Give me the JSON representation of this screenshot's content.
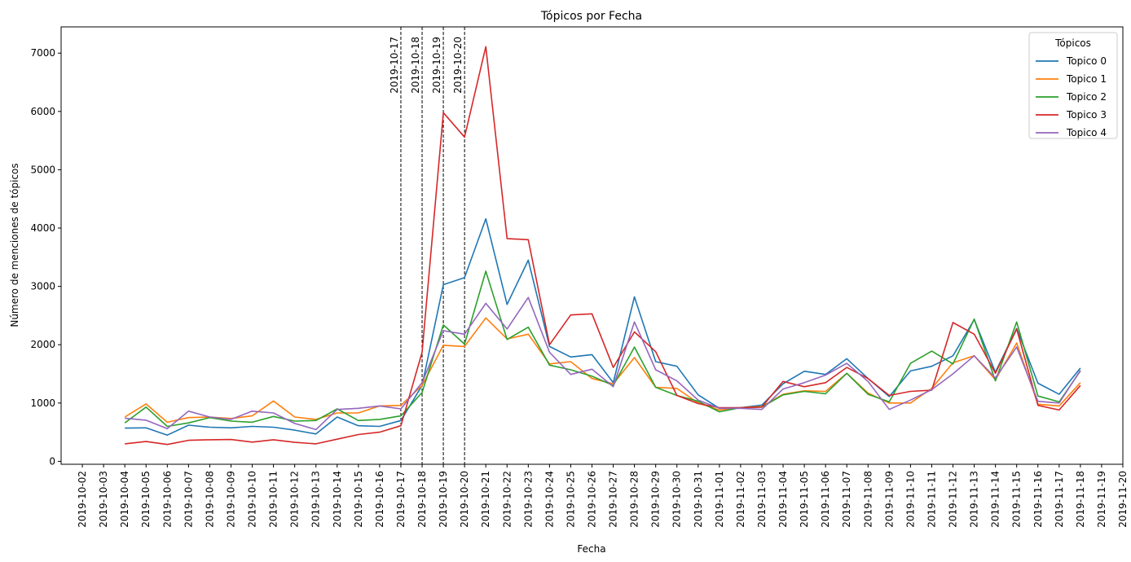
{
  "chart_data": {
    "type": "line",
    "title": "Tópicos por Fecha",
    "xlabel": "Fecha",
    "ylabel": "Número de menciones de tópicos",
    "ylim": [
      -50,
      7450
    ],
    "yticks": [
      0,
      1000,
      2000,
      3000,
      4000,
      5000,
      6000,
      7000
    ],
    "x_ticks": [
      "2019-10-02",
      "2019-10-03",
      "2019-10-04",
      "2019-10-05",
      "2019-10-06",
      "2019-10-07",
      "2019-10-08",
      "2019-10-09",
      "2019-10-10",
      "2019-10-11",
      "2019-10-12",
      "2019-10-13",
      "2019-10-14",
      "2019-10-15",
      "2019-10-16",
      "2019-10-17",
      "2019-10-18",
      "2019-10-19",
      "2019-10-20",
      "2019-10-21",
      "2019-10-22",
      "2019-10-23",
      "2019-10-24",
      "2019-10-25",
      "2019-10-26",
      "2019-10-27",
      "2019-10-28",
      "2019-10-29",
      "2019-10-30",
      "2019-10-31",
      "2019-11-01",
      "2019-11-02",
      "2019-11-03",
      "2019-11-04",
      "2019-11-05",
      "2019-11-06",
      "2019-11-07",
      "2019-11-08",
      "2019-11-09",
      "2019-11-10",
      "2019-11-11",
      "2019-11-12",
      "2019-11-13",
      "2019-11-14",
      "2019-11-15",
      "2019-11-16",
      "2019-11-17",
      "2019-11-18",
      "2019-11-19",
      "2019-11-20"
    ],
    "x": [
      "2019-10-04",
      "2019-10-05",
      "2019-10-06",
      "2019-10-07",
      "2019-10-08",
      "2019-10-09",
      "2019-10-10",
      "2019-10-11",
      "2019-10-12",
      "2019-10-13",
      "2019-10-14",
      "2019-10-15",
      "2019-10-16",
      "2019-10-17",
      "2019-10-18",
      "2019-10-19",
      "2019-10-20",
      "2019-10-21",
      "2019-10-22",
      "2019-10-23",
      "2019-10-24",
      "2019-10-25",
      "2019-10-26",
      "2019-10-27",
      "2019-10-28",
      "2019-10-29",
      "2019-10-30",
      "2019-10-31",
      "2019-11-01",
      "2019-11-02",
      "2019-11-03",
      "2019-11-04",
      "2019-11-05",
      "2019-11-06",
      "2019-11-07",
      "2019-11-08",
      "2019-11-09",
      "2019-11-10",
      "2019-11-11",
      "2019-11-12",
      "2019-11-13",
      "2019-11-14",
      "2019-11-15",
      "2019-11-16",
      "2019-11-17",
      "2019-11-18"
    ],
    "series": [
      {
        "name": "Topico 0",
        "color": "#1f77b4",
        "values": [
          570,
          575,
          450,
          620,
          585,
          575,
          600,
          585,
          535,
          470,
          760,
          610,
          600,
          700,
          1300,
          3030,
          3150,
          4160,
          2690,
          3450,
          1970,
          1790,
          1830,
          1350,
          2820,
          1710,
          1630,
          1140,
          910,
          920,
          965,
          1330,
          1545,
          1490,
          1760,
          1420,
          1110,
          1550,
          1630,
          1810,
          2430,
          1530,
          2280,
          1340,
          1150,
          1600
        ]
      },
      {
        "name": "Topico 1",
        "color": "#ff7f0e",
        "values": [
          760,
          985,
          670,
          750,
          760,
          735,
          780,
          1035,
          760,
          720,
          830,
          830,
          950,
          960,
          1300,
          1990,
          1970,
          2460,
          2100,
          2180,
          1670,
          1710,
          1420,
          1330,
          1780,
          1270,
          1250,
          1000,
          880,
          920,
          940,
          1150,
          1210,
          1200,
          1510,
          1170,
          1000,
          1000,
          1250,
          1690,
          1810,
          1400,
          2030,
          980,
          950,
          1350
        ]
      },
      {
        "name": "Topico 2",
        "color": "#2ca02c",
        "values": [
          660,
          930,
          600,
          660,
          750,
          690,
          670,
          770,
          690,
          700,
          900,
          700,
          720,
          780,
          1180,
          2340,
          2010,
          3260,
          2090,
          2300,
          1650,
          1570,
          1460,
          1300,
          1960,
          1270,
          1130,
          1030,
          850,
          920,
          930,
          1140,
          1200,
          1160,
          1510,
          1150,
          1020,
          1680,
          1890,
          1670,
          2440,
          1380,
          2390,
          1120,
          1020,
          1550
        ]
      },
      {
        "name": "Topico 3",
        "color": "#d62728",
        "values": [
          300,
          340,
          290,
          360,
          370,
          375,
          330,
          370,
          325,
          300,
          380,
          460,
          500,
          610,
          1870,
          5980,
          5560,
          7110,
          3820,
          3800,
          2000,
          2510,
          2530,
          1610,
          2220,
          1880,
          1130,
          990,
          920,
          920,
          930,
          1370,
          1280,
          1350,
          1610,
          1420,
          1130,
          1200,
          1220,
          2380,
          2180,
          1510,
          2270,
          960,
          880,
          1300
        ]
      },
      {
        "name": "Topico 4",
        "color": "#9467bd",
        "values": [
          740,
          705,
          560,
          860,
          760,
          720,
          860,
          830,
          650,
          545,
          890,
          910,
          950,
          900,
          1350,
          2240,
          2180,
          2710,
          2270,
          2810,
          1870,
          1490,
          1580,
          1280,
          2390,
          1570,
          1380,
          1050,
          910,
          910,
          890,
          1240,
          1350,
          1480,
          1680,
          1370,
          890,
          1050,
          1230,
          1500,
          1810,
          1430,
          1960,
          1030,
          1000,
          1560
        ]
      }
    ],
    "vlines": [
      "2019-10-17",
      "2019-10-18",
      "2019-10-19",
      "2019-10-20"
    ],
    "vline_labels": [
      "2019-10-17",
      "2019-10-18",
      "2019-10-19",
      "2019-10-20"
    ],
    "legend": {
      "title": "Tópicos",
      "placement": "top-right"
    },
    "grid": false
  }
}
